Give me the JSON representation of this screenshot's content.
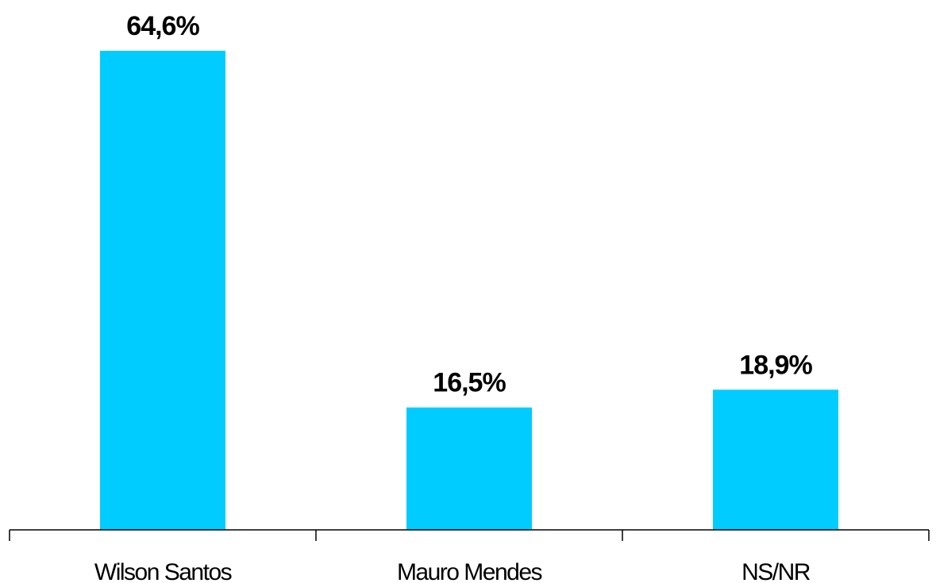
{
  "chart_data": {
    "type": "bar",
    "categories": [
      "Wilson Santos",
      "Mauro Mendes",
      "NS/NR"
    ],
    "values": [
      64.6,
      16.5,
      18.9
    ],
    "value_labels": [
      "64,6%",
      "16,5%",
      "18,9%"
    ],
    "ylim": [
      0,
      64.6
    ],
    "grid": false,
    "legend": "none",
    "bar_color": "#00ccff",
    "axis_color": "#000000"
  }
}
